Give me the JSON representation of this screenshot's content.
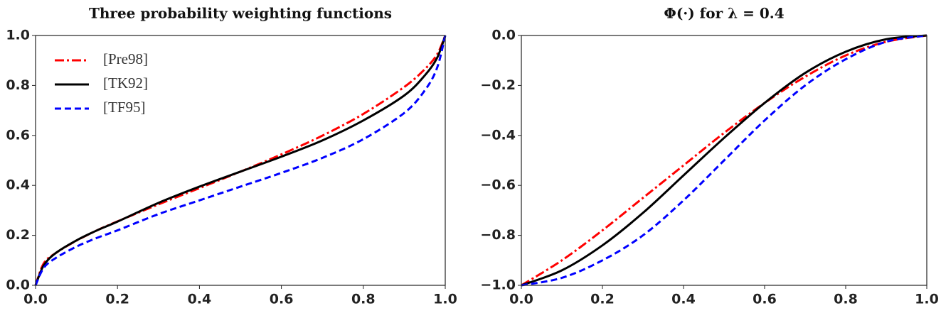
{
  "chart_data": [
    {
      "type": "line",
      "title": "Three probability weighting functions",
      "x": [
        0,
        0.02,
        0.05,
        0.1,
        0.15,
        0.2,
        0.3,
        0.4,
        0.5,
        0.6,
        0.7,
        0.8,
        0.9,
        0.95,
        0.98,
        1
      ],
      "series": [
        {
          "name": "[Pre98]",
          "color": "#ff0000",
          "linestyle": "dashdot",
          "values": [
            0,
            0.088,
            0.13,
            0.179,
            0.22,
            0.256,
            0.324,
            0.389,
            0.455,
            0.524,
            0.599,
            0.686,
            0.794,
            0.865,
            0.924,
            1
          ]
        },
        {
          "name": "[TK92]",
          "color": "#000000",
          "linestyle": "solid",
          "values": [
            0,
            0.08,
            0.13,
            0.18,
            0.22,
            0.255,
            0.33,
            0.395,
            0.455,
            0.515,
            0.58,
            0.66,
            0.76,
            0.84,
            0.91,
            1
          ]
        },
        {
          "name": "[TF95]",
          "color": "#0000ff",
          "linestyle": "dashed",
          "values": [
            0,
            0.07,
            0.11,
            0.155,
            0.19,
            0.22,
            0.285,
            0.34,
            0.395,
            0.45,
            0.51,
            0.585,
            0.69,
            0.78,
            0.87,
            1
          ]
        }
      ],
      "xlim": [
        0,
        1
      ],
      "ylim": [
        0,
        1
      ],
      "xticks": [
        {
          "value": 0,
          "label": "0.0"
        },
        {
          "value": 0.2,
          "label": "0.2"
        },
        {
          "value": 0.4,
          "label": "0.4"
        },
        {
          "value": 0.6,
          "label": "0.6"
        },
        {
          "value": 0.8,
          "label": "0.8"
        },
        {
          "value": 1,
          "label": "1.0"
        }
      ],
      "yticks": [
        {
          "value": 0,
          "label": "0.0"
        },
        {
          "value": 0.2,
          "label": "0.2"
        },
        {
          "value": 0.4,
          "label": "0.4"
        },
        {
          "value": 0.6,
          "label": "0.6"
        },
        {
          "value": 0.8,
          "label": "0.8"
        },
        {
          "value": 1,
          "label": "1.0"
        }
      ],
      "legend": "upper left",
      "grid": false
    },
    {
      "type": "line",
      "title": "Φ(·) for λ = 0.4",
      "x": [
        0,
        0.1,
        0.2,
        0.3,
        0.4,
        0.5,
        0.6,
        0.7,
        0.8,
        0.9,
        1
      ],
      "series": [
        {
          "color": "#ff0000",
          "linestyle": "dashdot",
          "values": [
            -1,
            -0.9,
            -0.78,
            -0.65,
            -0.52,
            -0.39,
            -0.27,
            -0.165,
            -0.08,
            -0.025,
            0
          ]
        },
        {
          "color": "#000000",
          "linestyle": "solid",
          "values": [
            -1,
            -0.94,
            -0.84,
            -0.71,
            -0.56,
            -0.41,
            -0.27,
            -0.15,
            -0.065,
            -0.015,
            0
          ]
        },
        {
          "color": "#0000ff",
          "linestyle": "dashed",
          "values": [
            -1,
            -0.97,
            -0.9,
            -0.8,
            -0.66,
            -0.5,
            -0.34,
            -0.2,
            -0.095,
            -0.025,
            0
          ]
        }
      ],
      "xlim": [
        0,
        1
      ],
      "ylim": [
        -1,
        0
      ],
      "xticks": [
        {
          "value": 0,
          "label": "0.0"
        },
        {
          "value": 0.2,
          "label": "0.2"
        },
        {
          "value": 0.4,
          "label": "0.4"
        },
        {
          "value": 0.6,
          "label": "0.6"
        },
        {
          "value": 0.8,
          "label": "0.8"
        },
        {
          "value": 1,
          "label": "1.0"
        }
      ],
      "yticks": [
        {
          "value": -1,
          "label": "−1.0"
        },
        {
          "value": -0.8,
          "label": "−0.8"
        },
        {
          "value": -0.6,
          "label": "−0.6"
        },
        {
          "value": -0.4,
          "label": "−0.4"
        },
        {
          "value": -0.2,
          "label": "−0.2"
        },
        {
          "value": 0,
          "label": "0.0"
        }
      ],
      "grid": false
    }
  ]
}
